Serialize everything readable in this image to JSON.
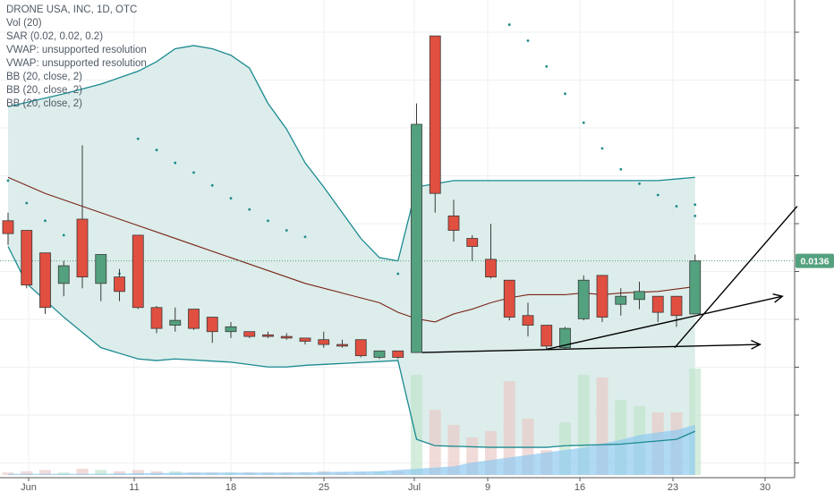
{
  "legend": {
    "title": "DRONE USA, INC, 1D, OTC",
    "lines": [
      "Vol (20)",
      "SAR (0.02, 0.02, 0.2)",
      "VWAP: unsupported resolution",
      "VWAP: unsupported resolution",
      "BB (20, close, 2)",
      "BB (20, close, 2)",
      "BB (20, close, 2)"
    ]
  },
  "last_price_label": "0.0136",
  "colors": {
    "up": "#53a17e",
    "down": "#e04f3f",
    "band_fill": "#d6eae7",
    "band_line": "#1a8a91",
    "basis": "#7a2418",
    "sar": "#1c8a8a",
    "volume_ma": "#8ec9ef",
    "price_line": "#53a17e"
  },
  "chart_data": {
    "type": "candlestick",
    "x_tick_labels": [
      "Jun",
      "11",
      "18",
      "25",
      "Jul",
      "9",
      "16",
      "23",
      "30"
    ],
    "ylim": [
      0.0,
      0.029
    ],
    "last_price": 0.0136,
    "candles": [
      {
        "o": 0.0161,
        "h": 0.0166,
        "l": 0.0146,
        "c": 0.0153
      },
      {
        "o": 0.0155,
        "h": 0.0155,
        "l": 0.0119,
        "c": 0.0121
      },
      {
        "o": 0.0141,
        "h": 0.0141,
        "l": 0.0103,
        "c": 0.0107
      },
      {
        "o": 0.0122,
        "h": 0.0136,
        "l": 0.0114,
        "c": 0.0133
      },
      {
        "o": 0.0162,
        "h": 0.0208,
        "l": 0.0119,
        "c": 0.0126
      },
      {
        "o": 0.0122,
        "h": 0.014,
        "l": 0.0111,
        "c": 0.014
      },
      {
        "o": 0.0126,
        "h": 0.0131,
        "l": 0.0111,
        "c": 0.0117
      },
      {
        "o": 0.0152,
        "h": 0.0152,
        "l": 0.0106,
        "c": 0.0107
      },
      {
        "o": 0.0107,
        "h": 0.0108,
        "l": 0.0091,
        "c": 0.0094
      },
      {
        "o": 0.0096,
        "h": 0.0107,
        "l": 0.0092,
        "c": 0.0099
      },
      {
        "o": 0.0106,
        "h": 0.0106,
        "l": 0.0093,
        "c": 0.0094
      },
      {
        "o": 0.0101,
        "h": 0.0101,
        "l": 0.0085,
        "c": 0.0092
      },
      {
        "o": 0.0092,
        "h": 0.0098,
        "l": 0.0088,
        "c": 0.0095
      },
      {
        "o": 0.0092,
        "h": 0.0092,
        "l": 0.0088,
        "c": 0.0089
      },
      {
        "o": 0.009,
        "h": 0.0092,
        "l": 0.0088,
        "c": 0.0089
      },
      {
        "o": 0.0089,
        "h": 0.0091,
        "l": 0.0087,
        "c": 0.0088
      },
      {
        "o": 0.0088,
        "h": 0.0088,
        "l": 0.0084,
        "c": 0.0086
      },
      {
        "o": 0.0087,
        "h": 0.0092,
        "l": 0.0082,
        "c": 0.0084
      },
      {
        "o": 0.0084,
        "h": 0.0087,
        "l": 0.0082,
        "c": 0.0083
      },
      {
        "o": 0.0087,
        "h": 0.0087,
        "l": 0.0076,
        "c": 0.0077
      },
      {
        "o": 0.0076,
        "h": 0.008,
        "l": 0.0075,
        "c": 0.008
      },
      {
        "o": 0.008,
        "h": 0.008,
        "l": 0.0075,
        "c": 0.0076
      },
      {
        "o": 0.0079,
        "h": 0.0234,
        "l": 0.0079,
        "c": 0.0221
      },
      {
        "o": 0.0276,
        "h": 0.0276,
        "l": 0.0166,
        "c": 0.0178
      },
      {
        "o": 0.0164,
        "h": 0.0174,
        "l": 0.0148,
        "c": 0.0155
      },
      {
        "o": 0.015,
        "h": 0.0152,
        "l": 0.0136,
        "c": 0.0145
      },
      {
        "o": 0.0137,
        "h": 0.0159,
        "l": 0.0125,
        "c": 0.0126
      },
      {
        "o": 0.0124,
        "h": 0.0124,
        "l": 0.0099,
        "c": 0.0101
      },
      {
        "o": 0.0102,
        "h": 0.011,
        "l": 0.0089,
        "c": 0.0096
      },
      {
        "o": 0.0096,
        "h": 0.0096,
        "l": 0.0081,
        "c": 0.0083
      },
      {
        "o": 0.0082,
        "h": 0.0095,
        "l": 0.0081,
        "c": 0.0094
      },
      {
        "o": 0.01,
        "h": 0.0127,
        "l": 0.0099,
        "c": 0.0124
      },
      {
        "o": 0.0127,
        "h": 0.0127,
        "l": 0.0098,
        "c": 0.0101
      },
      {
        "o": 0.0109,
        "h": 0.0119,
        "l": 0.0102,
        "c": 0.0114
      },
      {
        "o": 0.0112,
        "h": 0.0123,
        "l": 0.0106,
        "c": 0.0117
      },
      {
        "o": 0.0114,
        "h": 0.0114,
        "l": 0.0098,
        "c": 0.0104
      },
      {
        "o": 0.0114,
        "h": 0.0114,
        "l": 0.0095,
        "c": 0.0102
      },
      {
        "o": 0.0103,
        "h": 0.014,
        "l": 0.0103,
        "c": 0.0136
      }
    ],
    "upper_band": [
      0.0232,
      0.024,
      0.0246,
      0.0254,
      0.026,
      0.0268,
      0.027,
      0.0268,
      0.0264,
      0.0256,
      0.0234,
      0.0218,
      0.0197,
      0.0182,
      0.0166,
      0.015,
      0.0138,
      0.0136,
      0.0182,
      0.0186,
      0.0186,
      0.0188
    ],
    "upper_band_x": [
      0,
      3,
      5,
      7,
      8,
      9,
      10,
      11,
      12,
      13,
      14,
      15,
      16,
      17,
      18,
      19,
      20,
      21,
      22,
      24,
      35,
      37
    ],
    "lower_band": [
      0.0145,
      0.0122,
      0.0101,
      0.0082,
      0.0075,
      0.0074,
      0.0075,
      0.0073,
      0.007,
      0.007,
      0.0071,
      0.0074,
      0.0025,
      0.0021,
      0.002,
      0.002,
      0.0021,
      0.0022,
      0.0025,
      0.003
    ],
    "lower_band_x": [
      0,
      1,
      3,
      5,
      7,
      8,
      9,
      12,
      14,
      15,
      16,
      21,
      22,
      23,
      26,
      29,
      30,
      33,
      36,
      37
    ],
    "basis": [
      0.0188,
      0.0178,
      0.017,
      0.0162,
      0.0154,
      0.0146,
      0.0138,
      0.013,
      0.0122,
      0.0116,
      0.011,
      0.0104,
      0.01,
      0.0098,
      0.0103,
      0.0106,
      0.011,
      0.0113,
      0.0115,
      0.0115,
      0.0116,
      0.0115,
      0.0116,
      0.0117,
      0.012
    ],
    "basis_x": [
      0,
      2,
      4,
      6,
      8,
      10,
      12,
      14,
      16,
      18,
      20,
      21,
      22,
      23,
      24,
      25,
      26,
      27,
      28,
      30,
      31,
      32,
      33,
      35,
      37
    ],
    "sar": [
      0.0186,
      0.0172,
      0.0161,
      0.0152,
      0.0143,
      0.0136,
      0.0128,
      0.0212,
      0.0205,
      0.0197,
      0.0191,
      0.0183,
      0.0175,
      0.0168,
      0.0161,
      0.0155,
      0.0151,
      0.0128,
      0.0283,
      0.0273,
      0.0257,
      0.024,
      0.0222,
      0.0206,
      0.0193,
      0.0184,
      0.0177,
      0.017,
      0.0164,
      0.0171
    ],
    "sar_x": [
      0,
      1,
      2,
      3,
      4,
      5,
      6,
      7,
      8,
      9,
      10,
      11,
      12,
      13,
      14,
      15,
      16,
      21,
      27,
      28,
      29,
      30,
      31,
      32,
      33,
      34,
      35,
      36,
      37,
      37
    ],
    "volume": [
      0.02,
      0.03,
      0.04,
      0.02,
      0.05,
      0.04,
      0.03,
      0.04,
      0.03,
      0.03,
      0.02,
      0.02,
      0.02,
      0.02,
      0.02,
      0.02,
      0.02,
      0.03,
      0.02,
      0.02,
      0.03,
      0.03,
      0.8,
      0.52,
      0.4,
      0.3,
      0.35,
      0.75,
      0.45,
      0.2,
      0.42,
      0.8,
      0.78,
      0.6,
      0.55,
      0.5,
      0.5,
      0.85
    ],
    "volume_ma": [
      0.01,
      0.01,
      0.02,
      0.02,
      0.03,
      0.04,
      0.05,
      0.06,
      0.07,
      0.1,
      0.12,
      0.14,
      0.16,
      0.18,
      0.2,
      0.22,
      0.25,
      0.28,
      0.32,
      0.36,
      0.4
    ],
    "volume_ma_x": [
      0,
      5,
      10,
      15,
      20,
      21,
      22,
      23,
      24,
      25,
      26,
      27,
      28,
      29,
      30,
      31,
      32,
      33,
      34,
      36,
      37
    ],
    "trendlines": [
      {
        "x1": 22.3,
        "y1": 0.0079,
        "x2": 40.5,
        "y2": 0.0084,
        "arrow": true
      },
      {
        "x1": 29.0,
        "y1": 0.0081,
        "x2": 41.7,
        "y2": 0.0114,
        "arrow": true
      },
      {
        "x1": 35.9,
        "y1": 0.0082,
        "x2": 42.5,
        "y2": 0.017,
        "arrow": false
      }
    ]
  }
}
